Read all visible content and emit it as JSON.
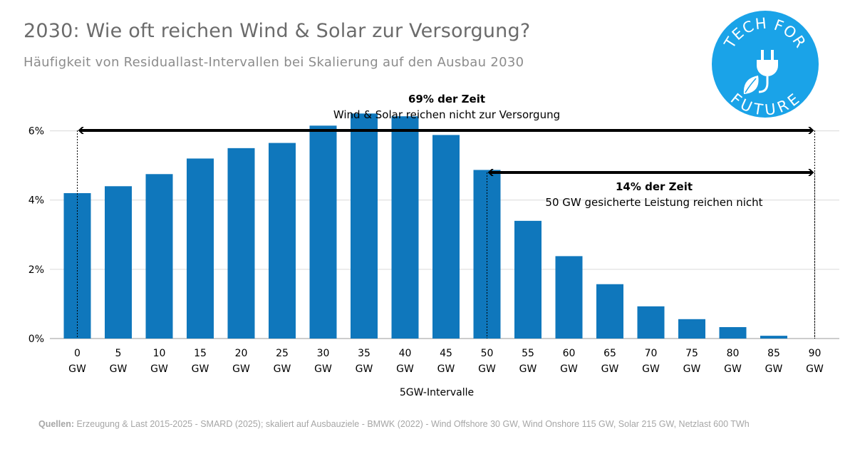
{
  "title": "2030: Wie oft reichen Wind & Solar zur Versorgung?",
  "subtitle": "Häufigkeit von Residuallast-Intervallen bei Skalierung auf den Ausbau 2030",
  "sources": {
    "label": "Quellen:",
    "text": " Erzeugung & Last 2015-2025 - SMARD (2025); skaliert auf Ausbauziele - BMWK (2022) - Wind Offshore 30 GW, Wind Onshore 115 GW, Solar 215 GW, Netzlast 600 TWh"
  },
  "logo": {
    "top_text": "TECH FOR",
    "bottom_text": "FUTURE",
    "icon": "plug-leaf-icon",
    "color": "#1aa3e8"
  },
  "annotations": [
    {
      "bold": "69% der Zeit",
      "text": "Wind & Solar reichen nicht zur Versorgung",
      "from": "0",
      "to": "90"
    },
    {
      "bold": "14% der Zeit",
      "text": "50 GW gesicherte Leistung reichen nicht",
      "from": "50",
      "to": "90"
    }
  ],
  "chart_data": {
    "type": "bar",
    "categories": [
      "0",
      "5",
      "10",
      "15",
      "20",
      "25",
      "30",
      "35",
      "40",
      "45",
      "50",
      "55",
      "60",
      "65",
      "70",
      "75",
      "80",
      "85",
      "90"
    ],
    "category_unit": "GW",
    "values": [
      4.2,
      4.4,
      4.75,
      5.2,
      5.5,
      5.65,
      6.15,
      6.5,
      6.42,
      5.88,
      4.87,
      3.4,
      2.38,
      1.57,
      0.93,
      0.56,
      0.33,
      0.08,
      0
    ],
    "xlabel": "5GW-Intervalle",
    "ylabel": "",
    "ylim": [
      0,
      7
    ],
    "yticks": [
      0,
      2,
      4,
      6
    ],
    "ytick_labels": [
      "0%",
      "2%",
      "4%",
      "6%"
    ],
    "bar_color": "#0f77bc",
    "grid": true
  }
}
